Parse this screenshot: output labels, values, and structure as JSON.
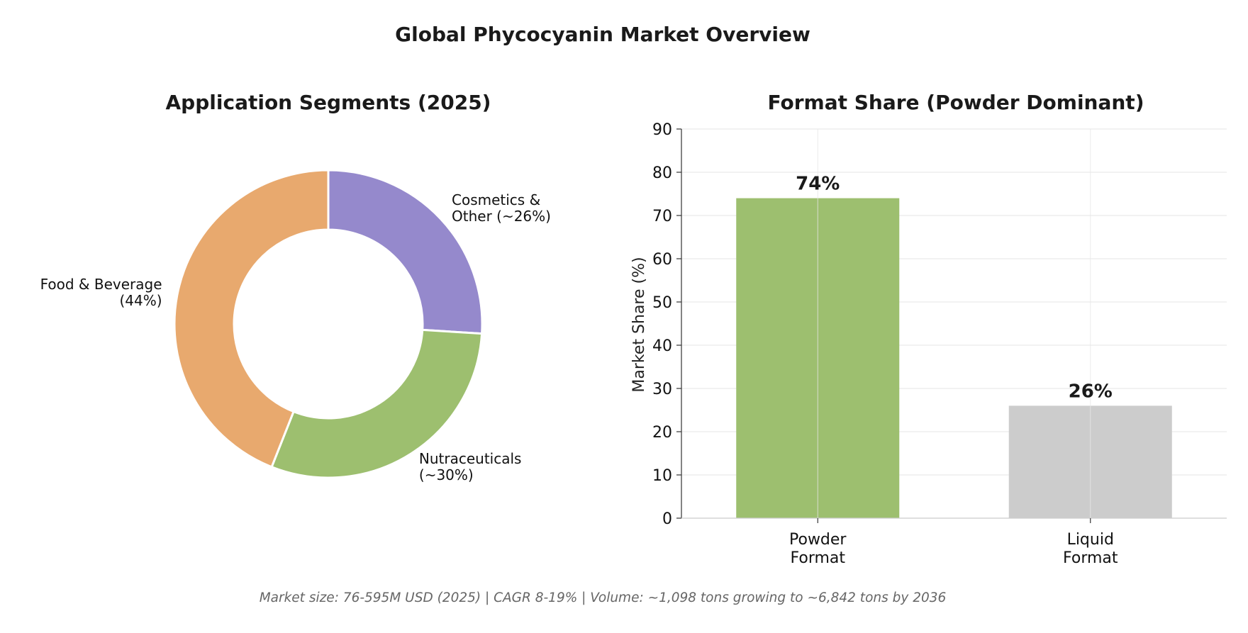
{
  "figure": {
    "title": "Global Phycocyanin Market Overview",
    "footnote": "Market size: 76-595M USD (2025) | CAGR 8-19% | Volume: ~1,098 tons growing to ~6,842 tons by 2036"
  },
  "chart_data": [
    {
      "type": "pie",
      "donut": true,
      "title": "Application Segments (2025)",
      "start_angle_deg": 90,
      "direction": "clockwise",
      "slices": [
        {
          "label_lines": [
            "Cosmetics &",
            "Other (~26%)"
          ],
          "value": 26,
          "color": "#9589CC"
        },
        {
          "label_lines": [
            "Nutraceuticals",
            "(~30%)"
          ],
          "value": 30,
          "color": "#9DBF6F"
        },
        {
          "label_lines": [
            "Food & Beverage",
            "(44%)"
          ],
          "value": 44,
          "color": "#E8A96E"
        }
      ]
    },
    {
      "type": "bar",
      "title": "Format Share (Powder Dominant)",
      "ylabel": "Market Share (%)",
      "xlabel": "",
      "ylim": [
        0,
        90
      ],
      "yticks": [
        0,
        10,
        20,
        30,
        40,
        50,
        60,
        70,
        80,
        90
      ],
      "grid": true,
      "categories": [
        {
          "label_lines": [
            "Powder",
            "Format"
          ],
          "value": 74,
          "data_label": "74%",
          "color": "#9DBF6F"
        },
        {
          "label_lines": [
            "Liquid",
            "Format"
          ],
          "value": 26,
          "data_label": "26%",
          "color": "#CCCCCC"
        }
      ]
    }
  ]
}
